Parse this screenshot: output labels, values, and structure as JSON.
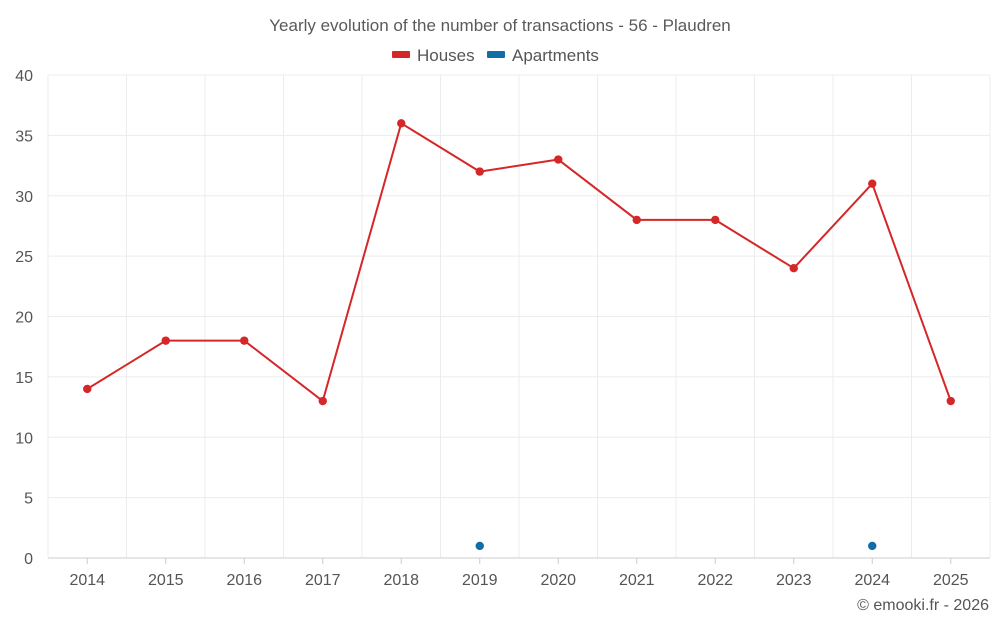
{
  "chart_data": {
    "type": "line",
    "title": "Yearly evolution of the number of transactions - 56 - Plaudren",
    "categories": [
      "2014",
      "2015",
      "2016",
      "2017",
      "2018",
      "2019",
      "2020",
      "2021",
      "2022",
      "2023",
      "2024",
      "2025"
    ],
    "ylim": [
      0,
      40
    ],
    "yticks": [
      0,
      5,
      10,
      15,
      20,
      25,
      30,
      35,
      40
    ],
    "grid": true,
    "legend_position": "top-center",
    "xlabel": "",
    "ylabel": "",
    "series": [
      {
        "name": "Houses",
        "color": "#d62728",
        "values": [
          14,
          18,
          18,
          13,
          36,
          32,
          33,
          28,
          28,
          24,
          31,
          13
        ],
        "draw_line": true
      },
      {
        "name": "Apartments",
        "color": "#0f6ea4",
        "values": [
          null,
          null,
          null,
          null,
          null,
          1,
          null,
          null,
          null,
          null,
          1,
          null
        ],
        "draw_line": false
      }
    ]
  },
  "credit": "© emooki.fr - 2026"
}
